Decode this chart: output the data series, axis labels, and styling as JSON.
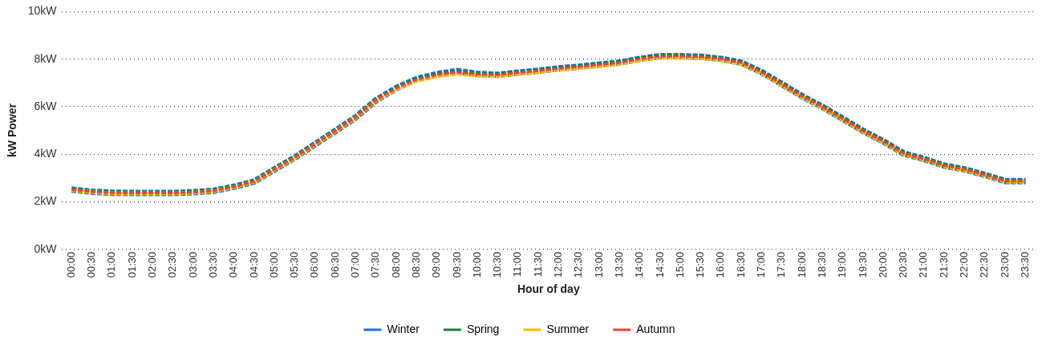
{
  "chart_data": {
    "type": "line",
    "xlabel": "Hour of day",
    "ylabel": "kW Power",
    "categories": [
      "00:00",
      "00:30",
      "01:00",
      "01:30",
      "02:00",
      "02:30",
      "03:00",
      "03:30",
      "04:00",
      "04:30",
      "05:00",
      "05:30",
      "06:00",
      "06:30",
      "07:00",
      "07:30",
      "08:00",
      "08:30",
      "09:00",
      "09:30",
      "10:00",
      "10:30",
      "11:00",
      "11:30",
      "12:00",
      "12:30",
      "13:00",
      "13:30",
      "14:00",
      "14:30",
      "15:00",
      "15:30",
      "16:00",
      "16:30",
      "17:00",
      "17:30",
      "18:00",
      "18:30",
      "19:00",
      "19:30",
      "20:00",
      "20:30",
      "21:00",
      "21:30",
      "22:00",
      "22:30",
      "23:00",
      "23:30"
    ],
    "series": [
      {
        "name": "Winter",
        "color": "#1a73e8",
        "values": [
          2.51,
          2.42,
          2.38,
          2.37,
          2.37,
          2.37,
          2.4,
          2.46,
          2.63,
          2.85,
          3.36,
          3.86,
          4.42,
          4.98,
          5.55,
          6.27,
          6.78,
          7.16,
          7.37,
          7.5,
          7.38,
          7.34,
          7.43,
          7.51,
          7.61,
          7.68,
          7.77,
          7.85,
          8.01,
          8.12,
          8.12,
          8.1,
          8.01,
          7.85,
          7.45,
          6.95,
          6.44,
          5.99,
          5.49,
          4.98,
          4.54,
          4.03,
          3.8,
          3.52,
          3.36,
          3.13,
          2.87,
          2.87
        ]
      },
      {
        "name": "Spring",
        "color": "#188038",
        "values": [
          2.51,
          2.42,
          2.38,
          2.37,
          2.37,
          2.37,
          2.4,
          2.46,
          2.63,
          2.85,
          3.36,
          3.86,
          4.42,
          4.98,
          5.55,
          6.27,
          6.78,
          7.14,
          7.34,
          7.45,
          7.36,
          7.34,
          7.43,
          7.51,
          7.61,
          7.68,
          7.77,
          7.85,
          8.01,
          8.12,
          8.12,
          8.1,
          8.01,
          7.85,
          7.45,
          6.95,
          6.44,
          5.99,
          5.49,
          4.98,
          4.54,
          4.03,
          3.8,
          3.52,
          3.36,
          3.13,
          2.87,
          2.87
        ]
      },
      {
        "name": "Summer",
        "color": "#f9ba00",
        "values": [
          2.49,
          2.4,
          2.36,
          2.35,
          2.35,
          2.35,
          2.38,
          2.44,
          2.61,
          2.83,
          3.34,
          3.84,
          4.4,
          4.96,
          5.53,
          6.25,
          6.74,
          7.08,
          7.28,
          7.38,
          7.3,
          7.28,
          7.37,
          7.45,
          7.55,
          7.62,
          7.71,
          7.79,
          7.95,
          8.06,
          8.06,
          8.04,
          7.95,
          7.79,
          7.4,
          6.9,
          6.4,
          5.95,
          5.45,
          4.94,
          4.5,
          4.0,
          3.77,
          3.49,
          3.33,
          3.1,
          2.84,
          2.84
        ]
      },
      {
        "name": "Autumn",
        "color": "#ea4335",
        "values": [
          2.51,
          2.42,
          2.38,
          2.37,
          2.37,
          2.37,
          2.4,
          2.46,
          2.63,
          2.85,
          3.36,
          3.86,
          4.42,
          4.98,
          5.55,
          6.27,
          6.78,
          7.14,
          7.34,
          7.45,
          7.36,
          7.34,
          7.43,
          7.51,
          7.61,
          7.68,
          7.77,
          7.85,
          8.01,
          8.12,
          8.12,
          8.1,
          8.01,
          7.85,
          7.45,
          6.95,
          6.44,
          5.99,
          5.49,
          4.98,
          4.54,
          4.03,
          3.8,
          3.52,
          3.36,
          3.13,
          2.87,
          2.87
        ]
      }
    ],
    "ylim": [
      0,
      10
    ],
    "yticks": [
      {
        "value": 0,
        "label": "0kW"
      },
      {
        "value": 2,
        "label": "2kW"
      },
      {
        "value": 4,
        "label": "4kW"
      },
      {
        "value": 6,
        "label": "6kW"
      },
      {
        "value": 8,
        "label": "8kW"
      },
      {
        "value": 10,
        "label": "10kW"
      }
    ],
    "grid": "y",
    "legend": "bottom",
    "marker": "none",
    "line_style": "dashed"
  }
}
